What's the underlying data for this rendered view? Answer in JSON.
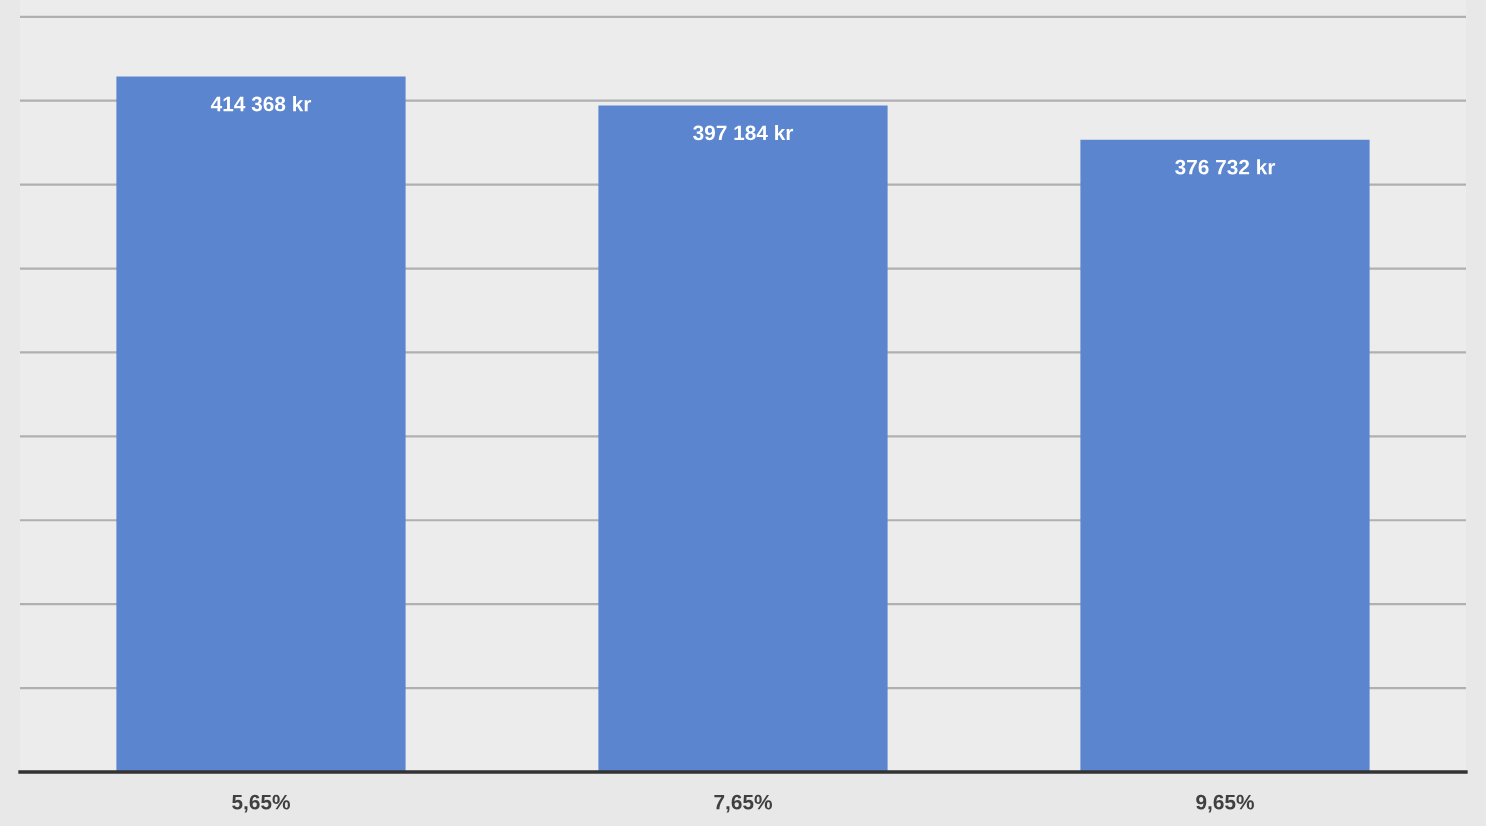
{
  "chart_data": {
    "type": "bar",
    "categories": [
      "5,65%",
      "7,65%",
      "9,65%"
    ],
    "values": [
      414368,
      397184,
      376732
    ],
    "value_labels": [
      "414 368 kr",
      "397 184 kr",
      "376 732 kr"
    ],
    "color": "#5b86cf",
    "ylim": [
      0,
      460000
    ],
    "yticks": [
      {
        "value": 0,
        "label": null
      },
      {
        "value": 50000,
        "label": null
      },
      {
        "value": 100000,
        "label": null
      },
      {
        "value": 150000,
        "label": null
      },
      {
        "value": 200000,
        "label": null
      },
      {
        "value": 250000,
        "label": null
      },
      {
        "value": 300000,
        "label": null
      },
      {
        "value": 350000,
        "label": null
      },
      {
        "value": 400000,
        "label": null
      },
      {
        "value": 450000,
        "label": null
      }
    ],
    "tick_labels": "x",
    "grid": "y",
    "legend": false
  }
}
